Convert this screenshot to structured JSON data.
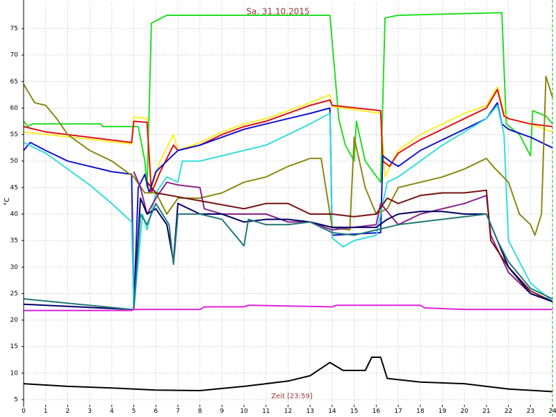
{
  "chart_data": {
    "type": "line",
    "title": "Sa. 31.10.2015",
    "y_label": "°C",
    "x_label": "Zeit [23:59]",
    "xlim": [
      0,
      24
    ],
    "xticks": [
      0,
      1,
      2,
      3,
      4,
      5,
      6,
      7,
      8,
      9,
      10,
      11,
      12,
      13,
      14,
      15,
      16,
      17,
      18,
      19,
      20,
      21,
      22,
      23,
      24
    ],
    "ylim": [
      4,
      80
    ],
    "yticks": [
      5,
      10,
      15,
      20,
      25,
      30,
      35,
      40,
      45,
      50,
      55,
      60,
      65,
      70,
      75
    ],
    "grid": true,
    "series": [
      {
        "color": "#22dd22",
        "x": [
          0,
          0.2,
          0.4,
          3.5,
          3.6,
          4.9,
          5.2,
          5.5,
          5.6,
          5.8,
          6.5,
          13.9,
          14.3,
          14.6,
          15,
          15.1,
          15.5,
          16.2,
          16.4,
          17,
          21.7,
          21.9,
          22.5,
          23,
          23.1,
          23.7,
          24
        ],
        "values": [
          57.5,
          56.5,
          57,
          57,
          56.5,
          56.5,
          56.5,
          50,
          45,
          76,
          77.5,
          77.5,
          58,
          53,
          50,
          57.5,
          50,
          46,
          77,
          77.5,
          78,
          57,
          55,
          51,
          59.5,
          58.5,
          57
        ]
      },
      {
        "color": "#ffee22",
        "x": [
          0,
          4.9,
          5,
          5.6,
          5.8,
          6.2,
          6.8,
          7,
          8,
          9,
          10,
          11,
          12,
          13,
          13.9,
          14,
          16.2,
          16.4,
          17,
          18,
          19,
          20,
          21,
          21.5,
          21.8,
          22,
          23,
          24
        ],
        "values": [
          55.5,
          53.2,
          58.3,
          58,
          45,
          50,
          55,
          52,
          53.5,
          55.5,
          57,
          58,
          59.5,
          61,
          62.5,
          60.3,
          59,
          47,
          52,
          55,
          57,
          59,
          60.5,
          64,
          59,
          58,
          57,
          55.5
        ]
      },
      {
        "color": "#dd1111",
        "x": [
          0,
          1,
          4.9,
          5,
          5.6,
          5.8,
          6.2,
          6.8,
          7,
          8,
          9,
          10,
          11,
          12,
          13,
          13.9,
          14,
          16.2,
          16.3,
          16.6,
          17,
          18,
          19,
          20,
          21,
          21.5,
          21.8,
          22,
          23,
          24
        ],
        "values": [
          56.5,
          55.5,
          53.5,
          57.5,
          57.3,
          44,
          48,
          53,
          52,
          53,
          55,
          56.5,
          57.5,
          59,
          60.5,
          61.5,
          60.5,
          59.5,
          50,
          49,
          51.5,
          54,
          56,
          58,
          60,
          63.5,
          58.5,
          58,
          57,
          56.5
        ]
      },
      {
        "color": "#1111cc",
        "x": [
          0,
          0.3,
          1,
          2,
          3,
          4,
          4.9,
          5,
          5.2,
          5.5,
          5.7,
          6,
          6.5,
          7,
          8,
          9,
          10,
          11,
          12,
          13,
          13.9,
          14,
          16.2,
          16.3,
          16.6,
          17,
          18,
          19,
          20,
          21,
          21.5,
          21.7,
          22,
          23,
          24
        ],
        "values": [
          52,
          53.5,
          52,
          50,
          49,
          48,
          47.5,
          22,
          45,
          47.5,
          44,
          48,
          50,
          52,
          53,
          54.5,
          56,
          57,
          58,
          59,
          60,
          36,
          36.5,
          51,
          50,
          49,
          52,
          54,
          56,
          58,
          61,
          57,
          56,
          54.5,
          52.5
        ]
      },
      {
        "color": "#33dddd",
        "x": [
          0,
          1,
          2,
          3,
          4,
          4.9,
          5,
          5.4,
          5.6,
          6,
          6.5,
          7,
          7.2,
          8,
          9,
          10,
          11,
          12,
          13,
          13.9,
          14,
          14.5,
          15,
          16,
          16.5,
          17,
          18,
          19,
          20,
          21,
          21.5,
          21.8,
          22,
          23,
          24
        ],
        "values": [
          53.5,
          51.5,
          48.5,
          45.5,
          42,
          38.5,
          22,
          40,
          37,
          44,
          47,
          46,
          50,
          50,
          51,
          52,
          53,
          55,
          57,
          59,
          35.5,
          33.8,
          35,
          36,
          46,
          47,
          50,
          53,
          55.5,
          58,
          60.5,
          55,
          35,
          27,
          23.5
        ]
      },
      {
        "color": "#888811",
        "x": [
          0,
          0.5,
          1,
          1.5,
          2,
          3,
          4,
          5,
          5.5,
          6,
          6.5,
          7,
          8,
          9,
          10,
          11,
          12,
          13,
          13.5,
          14,
          14.8,
          15,
          15.5,
          16,
          16.5,
          17,
          18,
          19,
          20,
          21,
          21.3,
          22,
          22.5,
          23,
          23.2,
          23.5,
          23.7,
          24
        ],
        "values": [
          64.5,
          61,
          60.5,
          58,
          55,
          52,
          50,
          47,
          44,
          44,
          40,
          43,
          43,
          44,
          46,
          47,
          49,
          50.5,
          50.5,
          37.5,
          37,
          54.5,
          45,
          40,
          41,
          45,
          46,
          47,
          48.5,
          50.5,
          49,
          46,
          40,
          38,
          36,
          40,
          66,
          62
        ]
      },
      {
        "color": "#882288",
        "x": [
          5,
          5.3,
          5.6,
          6,
          6.5,
          7,
          8,
          8.2,
          9,
          10,
          11,
          12,
          13,
          14,
          16,
          16.2,
          17,
          18,
          19,
          20,
          21,
          21.2,
          22,
          23,
          24
        ],
        "values": [
          48,
          45,
          40,
          43,
          46,
          45.5,
          45,
          41,
          40,
          40,
          40,
          38.5,
          38.5,
          37,
          38,
          42,
          38,
          40,
          41,
          42,
          43.5,
          36,
          29,
          25,
          23.5
        ]
      },
      {
        "color": "#771111",
        "x": [
          5.6,
          6,
          8,
          10,
          11,
          12,
          13,
          14,
          15,
          16,
          16.5,
          17,
          18,
          19,
          20,
          21,
          21.2,
          22,
          23,
          24
        ],
        "values": [
          46,
          44,
          42.5,
          41,
          42,
          42,
          40,
          40,
          39.5,
          40,
          43,
          42,
          43.5,
          44,
          44,
          44.5,
          35,
          30,
          25.5,
          23.5
        ]
      },
      {
        "color": "#000066",
        "x": [
          0,
          4.9,
          5,
          5.3,
          5.6,
          6,
          6.5,
          6.8,
          7,
          7.5,
          8,
          9,
          10,
          11,
          12,
          13,
          14,
          16,
          16.5,
          17,
          18,
          19,
          20,
          21,
          22,
          23,
          24
        ],
        "values": [
          23,
          22,
          22,
          43,
          40,
          41,
          38,
          31,
          42,
          41,
          40,
          40,
          38.5,
          39,
          39,
          38.5,
          37.5,
          37.5,
          39,
          40,
          40.5,
          40.5,
          40,
          40,
          30,
          25,
          23.5
        ]
      },
      {
        "color": "#227777",
        "x": [
          0,
          4.9,
          5,
          5.3,
          5.6,
          6,
          6.6,
          6.8,
          7,
          8,
          9,
          10,
          10.2,
          11,
          12,
          13,
          14,
          15,
          16,
          17,
          18,
          19,
          20,
          21,
          21.5,
          22,
          23,
          24
        ],
        "values": [
          24,
          22,
          22,
          40,
          38,
          42,
          38,
          30.5,
          40,
          40,
          39,
          34,
          39,
          38,
          38,
          38.5,
          36.5,
          36,
          37,
          38,
          38.5,
          39,
          39.5,
          40,
          35,
          31,
          26,
          24
        ]
      },
      {
        "color": "#dd22dd",
        "x": [
          0,
          4.9,
          5,
          8,
          8.2,
          10,
          10.2,
          14,
          14.2,
          18,
          18.2,
          20,
          24
        ],
        "values": [
          21.8,
          21.8,
          22,
          22,
          22.5,
          22.5,
          22.8,
          22.5,
          22.8,
          22.8,
          22.3,
          22,
          22
        ]
      },
      {
        "color": "#000000",
        "x": [
          0,
          2,
          4,
          6,
          8,
          10,
          12,
          13,
          13.9,
          14.5,
          15.5,
          15.8,
          16.2,
          16.5,
          18,
          20,
          22,
          24
        ],
        "values": [
          8,
          7.5,
          7.2,
          6.8,
          6.7,
          7.5,
          8.5,
          9.5,
          12,
          10.5,
          10.5,
          13,
          13,
          9,
          8.3,
          8,
          7,
          6.5
        ]
      }
    ]
  }
}
